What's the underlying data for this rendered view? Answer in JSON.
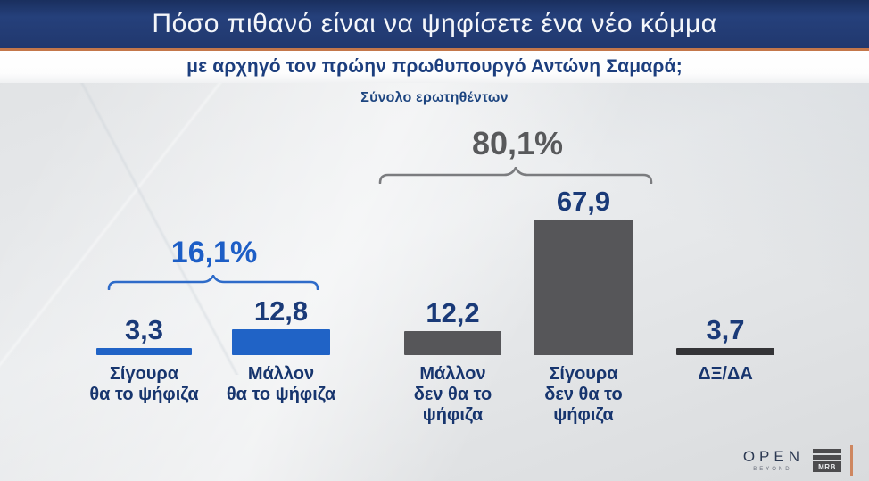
{
  "header": {
    "title": "Πόσο πιθανό είναι να ψηφίσετε ένα νέο κόμμα",
    "subtitle": "με αρχηγό τον πρώην πρωθυπουργό Αντώνη Σαμαρά;",
    "band_color": "#21386e",
    "divider_color": "#c4774a"
  },
  "chart_data": {
    "type": "bar",
    "note": "Σύνολο ερωτηθέντων",
    "categories": [
      "Σίγουρα θα το ψήφιζα",
      "Μάλλον θα το ψήφιζα",
      "Μάλλον δεν θα το ψήφιζα",
      "Σίγουρα δεν θα το ψήφιζα",
      "ΔΞ/ΔΑ"
    ],
    "categories_lines": [
      [
        "Σίγουρα",
        "θα το ψήφιζα"
      ],
      [
        "Μάλλον",
        "θα το ψήφιζα"
      ],
      [
        "Μάλλον",
        "δεν θα το",
        "ψήφιζα"
      ],
      [
        "Σίγουρα",
        "δεν θα το",
        "ψήφιζα"
      ],
      [
        "ΔΞ/ΔΑ"
      ]
    ],
    "values": [
      3.3,
      12.8,
      12.2,
      67.9,
      3.7
    ],
    "value_labels": [
      "3,3",
      "12,8",
      "12,2",
      "67,9",
      "3,7"
    ],
    "bar_colors": [
      "#2063c6",
      "#2063c6",
      "#565659",
      "#565659",
      "#343437"
    ],
    "value_color": "#1a3a78",
    "label_color": "#17356e",
    "groups": [
      {
        "label": "16,1%",
        "bars": [
          0,
          1
        ],
        "text_color": "#1d5ec6",
        "bracket_color": "#2e6bc9"
      },
      {
        "label": "80,1%",
        "bars": [
          2,
          3
        ],
        "text_color": "#58595b",
        "bracket_color": "#7b7c7f"
      }
    ],
    "ylim": [
      0,
      70
    ],
    "grid": false,
    "legend": false
  },
  "footer": {
    "open_logo": "OPEN",
    "open_sub": "BEYOND",
    "mrb_logo": "MRB",
    "accent_line_color": "#cd7f55"
  }
}
